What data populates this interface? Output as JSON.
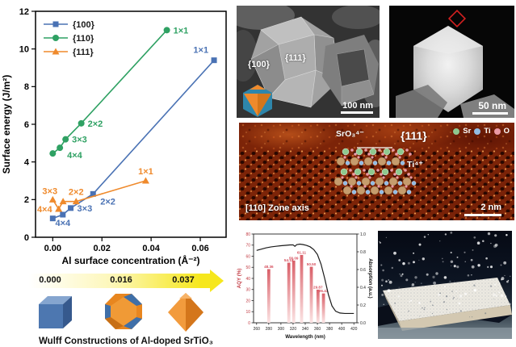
{
  "figure_bg": "#ffffff",
  "chart_data": [
    {
      "type": "line",
      "xlabel": "Al surface concentration (Å⁻²)",
      "ylabel": "Surface energy (J/m²)",
      "xlim": [
        -0.007,
        0.0705
      ],
      "ylim": [
        0,
        12
      ],
      "xticks": [
        0.0,
        0.02,
        0.04,
        0.06
      ],
      "xtick_labels": [
        "0.00",
        "0.02",
        "0.04",
        "0.06"
      ],
      "yticks": [
        0,
        2,
        4,
        6,
        8,
        10,
        12
      ],
      "legend_position": "top-left",
      "grid": false,
      "series": [
        {
          "name": "{100}",
          "color": "#4a72b4",
          "marker": "square",
          "x": [
            0.0,
            0.0041,
            0.0073,
            0.0164,
            0.0656
          ],
          "y": [
            1.0,
            1.2,
            1.55,
            2.3,
            9.4
          ],
          "point_labels": [
            "",
            "4×4",
            "3×3",
            "2×2",
            "1×1"
          ],
          "label_anchors": [
            "",
            "b",
            "r",
            "br",
            "al"
          ]
        },
        {
          "name": "{110}",
          "color": "#2fa163",
          "marker": "circle",
          "x": [
            0.0,
            0.0029,
            0.0052,
            0.0116,
            0.0464
          ],
          "y": [
            4.45,
            4.75,
            5.2,
            6.05,
            11.0
          ],
          "point_labels": [
            "",
            "4×4",
            "3×3",
            "2×2",
            "1×1"
          ],
          "label_anchors": [
            "",
            "br",
            "r",
            "r",
            "r"
          ]
        },
        {
          "name": "{111}",
          "color": "#ef8a2c",
          "marker": "triangle",
          "x": [
            0.0,
            0.0024,
            0.0042,
            0.0095,
            0.0378
          ],
          "y": [
            2.0,
            1.5,
            1.9,
            1.9,
            3.0
          ],
          "point_labels": [
            "",
            "4×4",
            "3×3",
            "2×2",
            "1×1"
          ],
          "label_anchors": [
            "",
            "l",
            "al",
            "a",
            "a"
          ]
        }
      ]
    },
    {
      "type": "bar+line",
      "xlabel": "Wavelength (nm)",
      "ylabel_left": "AQY (%)",
      "ylabel_right": "Absorption (a.u.)",
      "xlim": [
        255,
        425
      ],
      "xticks": [
        260,
        280,
        300,
        320,
        340,
        360,
        380,
        400,
        420
      ],
      "ylim_left": [
        0,
        80
      ],
      "yticks_left": [
        0,
        10,
        20,
        30,
        40,
        50,
        60,
        70,
        80
      ],
      "ylim_right": [
        0,
        1.0
      ],
      "yticks_right": [
        "0.0",
        "0.2",
        "0.4",
        "0.6",
        "0.8",
        "1.0"
      ],
      "axis_left_color": "#c23b43",
      "bars": {
        "x": [
          280,
          313,
          321,
          334,
          350,
          361,
          370
        ],
        "values": [
          48.36,
          54.18,
          56.09,
          61.11,
          50.5,
          29.87,
          26.43
        ],
        "labels": [
          "48.36",
          "54.18",
          "56.09",
          "61.11",
          "50.50",
          "29.87",
          "26.43"
        ],
        "bar_color_top": "#d95f68",
        "bar_color_bottom": "#fbe4e4",
        "label_color": "#d6505e"
      },
      "line": {
        "name": "Absorption",
        "color": "#1a1a1a",
        "x": [
          260,
          268,
          276,
          284,
          292,
          300,
          308,
          315,
          320,
          323,
          326,
          331,
          336,
          342,
          348,
          354,
          360,
          366,
          372,
          378,
          384,
          390,
          397,
          405,
          412,
          420
        ],
        "y": [
          0.815,
          0.83,
          0.845,
          0.855,
          0.862,
          0.868,
          0.873,
          0.877,
          0.878,
          0.862,
          0.88,
          0.886,
          0.882,
          0.872,
          0.856,
          0.825,
          0.77,
          0.66,
          0.5,
          0.32,
          0.19,
          0.13,
          0.11,
          0.105,
          0.105,
          0.105
        ]
      }
    }
  ],
  "panels": {
    "sem1": {
      "facet_label_1": "{100}",
      "facet_label_2": "{111}",
      "scalebar": "100 nm"
    },
    "sem2": {
      "scalebar": "50 nm"
    },
    "haadf": {
      "surface_species": "SrO₃⁴⁻",
      "plane_label": "{111}",
      "ion_label": "Ti⁴⁺",
      "zone_axis": "[110] Zone axis",
      "scalebar": "2 nm",
      "legend": [
        {
          "label": "Sr",
          "color": "#8fc98f"
        },
        {
          "label": "Ti",
          "color": "#92bce4"
        },
        {
          "label": "O",
          "color": "#eb9aa6"
        }
      ],
      "atom_column_color": "#c69c6d"
    },
    "wulff": {
      "values": [
        "0.000",
        "0.016",
        "0.037"
      ],
      "caption": "Wulff Constructions of Al-doped SrTiO₃",
      "arrow_color_start": "#ffffff",
      "arrow_color_end": "#f6e71d",
      "cube_color": "#4d77b0",
      "octahedron_color": "#ef8a2c"
    }
  }
}
